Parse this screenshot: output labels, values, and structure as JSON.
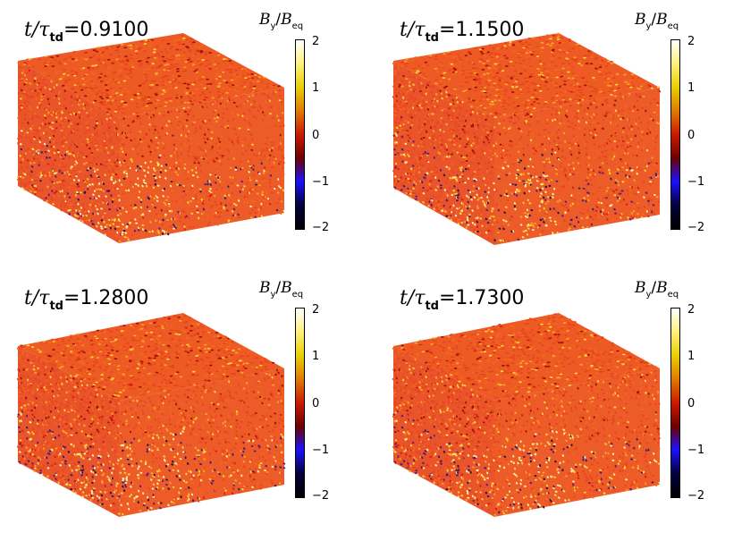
{
  "panels": [
    {
      "time_label": "t/τ",
      "time_sub": "td",
      "time_value": "=0.9100"
    },
    {
      "time_label": "t/τ",
      "time_sub": "td",
      "time_value": "=1.1500"
    },
    {
      "time_label": "t/τ",
      "time_sub": "td",
      "time_value": "=1.2800"
    },
    {
      "time_label": "t/τ",
      "time_sub": "td",
      "time_value": "=1.7300"
    }
  ],
  "colorbar": {
    "num": "B",
    "num_sub": "y",
    "den": "B",
    "den_sub": "eq",
    "ticks": [
      "2",
      "1",
      "0",
      "−1",
      "−2"
    ],
    "colors": [
      "#ffffff",
      "#fff27a",
      "#e8cf00",
      "#e07a00",
      "#cc1a00",
      "#6e0000",
      "#1a10ff",
      "#04003a",
      "#000000"
    ]
  },
  "texture": {
    "colors": [
      "#e8441e",
      "#f26a1c",
      "#f8a52a",
      "#fbd53a",
      "#fff3a0",
      "#d41e10",
      "#a01208",
      "#5e1a7a",
      "#24207a",
      "#1a1440"
    ]
  }
}
